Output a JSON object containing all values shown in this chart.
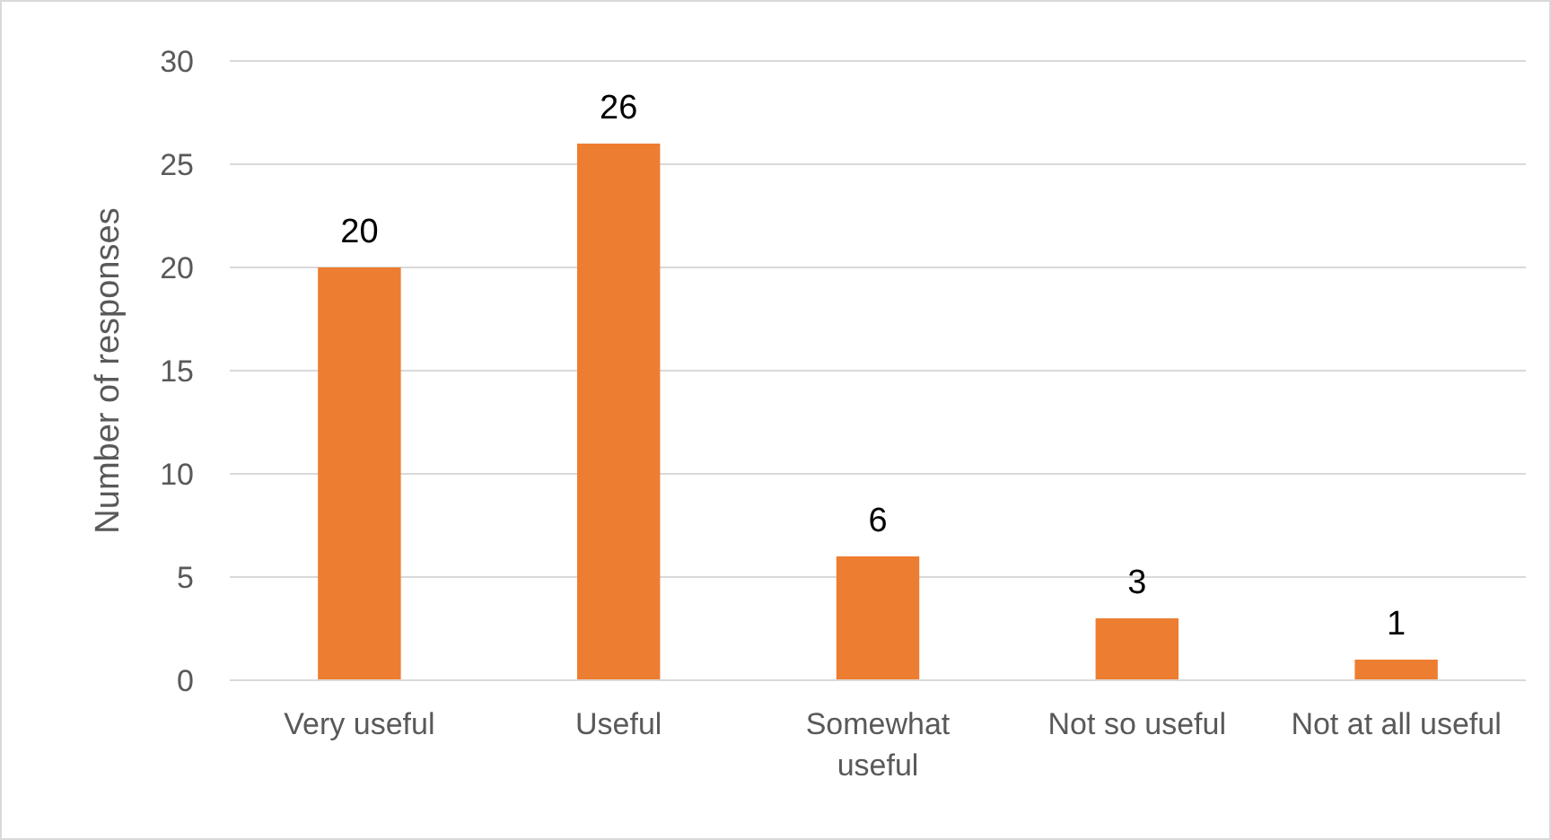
{
  "chart_data": {
    "type": "bar",
    "ylabel": "Number of responses",
    "categories": [
      "Very useful",
      "Useful",
      "Somewhat useful",
      "Not so useful",
      "Not at all useful"
    ],
    "values": [
      20,
      26,
      6,
      3,
      1
    ],
    "color": "#ed7d31",
    "ylim": [
      0,
      30
    ],
    "yticks": [
      0,
      5,
      10,
      15,
      20,
      25,
      30
    ],
    "grid": "y",
    "data_labels": true
  }
}
